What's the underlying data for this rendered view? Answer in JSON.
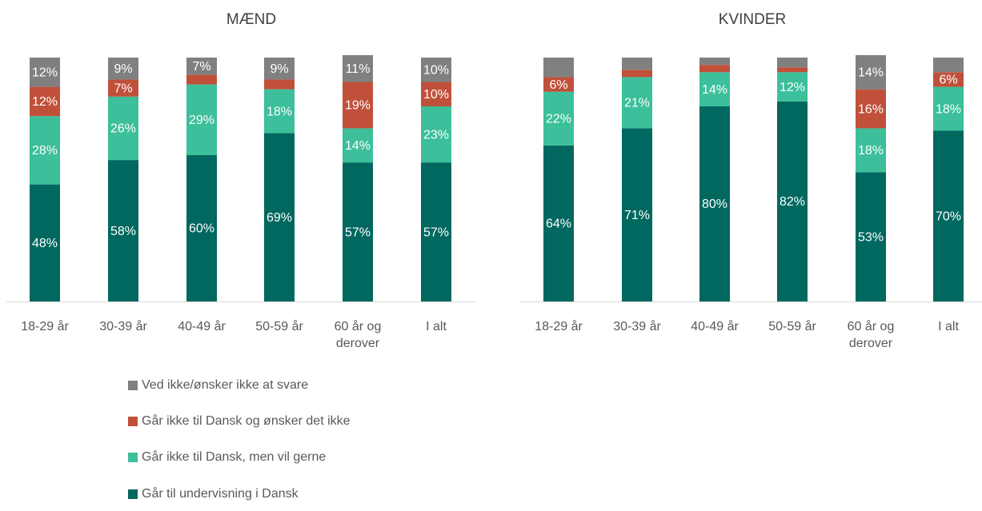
{
  "chart_data": [
    {
      "type": "stacked-bar",
      "title": "MÆND",
      "categories": [
        "18-29 år",
        "30-39 år",
        "40-49 år",
        "50-59 år",
        "60 år og derover",
        "I alt"
      ],
      "ylim": [
        0,
        100
      ],
      "series": [
        {
          "name": "Går til undervisning i Dansk",
          "color": "#00685f",
          "values": [
            48,
            58,
            60,
            69,
            57,
            57
          ],
          "value_labels": [
            "48%",
            "58%",
            "60%",
            "69%",
            "57%",
            "57%"
          ]
        },
        {
          "name": "Går ikke til Dansk, men vil gerne",
          "color": "#3cbf9a",
          "values": [
            28,
            26,
            29,
            18,
            14,
            23
          ],
          "value_labels": [
            "28%",
            "26%",
            "29%",
            "18%",
            "14%",
            "23%"
          ]
        },
        {
          "name": "Går ikke til Dansk og ønsker det ikke",
          "color": "#c0503a",
          "values": [
            12,
            7,
            4,
            4,
            19,
            10
          ],
          "value_labels": [
            "12%",
            "7%",
            null,
            null,
            "19%",
            "10%"
          ]
        },
        {
          "name": "Ved ikke/ønsker ikke at svare",
          "color": "#808080",
          "values": [
            12,
            9,
            7,
            9,
            11,
            10
          ],
          "value_labels": [
            "12%",
            "9%",
            "7%",
            "9%",
            "11%",
            "10%"
          ]
        }
      ]
    },
    {
      "type": "stacked-bar",
      "title": "KVINDER",
      "categories": [
        "18-29 år",
        "30-39 år",
        "40-49 år",
        "50-59 år",
        "60 år og derover",
        "I alt"
      ],
      "ylim": [
        0,
        100
      ],
      "series": [
        {
          "color": "#00685f",
          "values": [
            64,
            71,
            80,
            82,
            53,
            70
          ],
          "value_labels": [
            "64%",
            "71%",
            "80%",
            "82%",
            "53%",
            "70%"
          ]
        },
        {
          "color": "#3cbf9a",
          "values": [
            22,
            21,
            14,
            12,
            18,
            18
          ],
          "value_labels": [
            "22%",
            "21%",
            "14%",
            "12%",
            "18%",
            "18%"
          ]
        },
        {
          "color": "#c0503a",
          "values": [
            6,
            3,
            3,
            2,
            16,
            6
          ],
          "value_labels": [
            "6%",
            null,
            null,
            null,
            "16%",
            "6%"
          ]
        },
        {
          "color": "#808080",
          "values": [
            8,
            5,
            3,
            4,
            14,
            6
          ],
          "value_labels": [
            null,
            null,
            null,
            null,
            "14%",
            null
          ]
        }
      ]
    }
  ]
}
